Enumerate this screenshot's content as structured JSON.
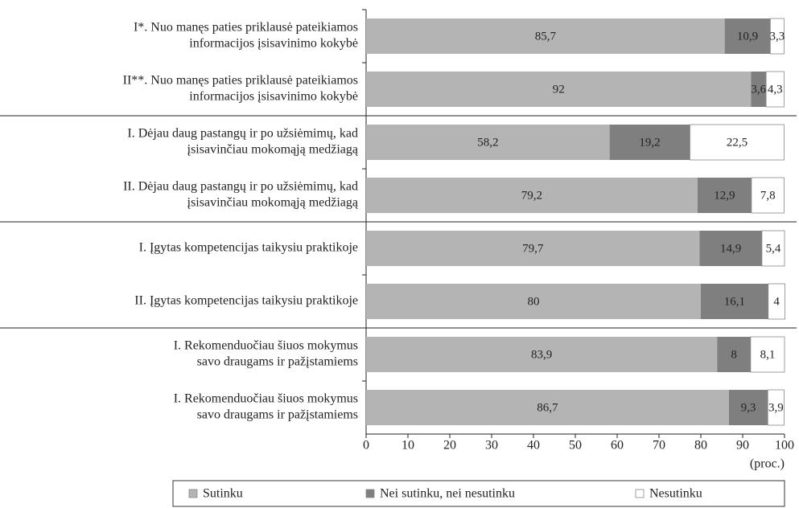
{
  "chart_data": {
    "type": "stacked_barh",
    "categories": [
      [
        "I*. Nuo manęs paties priklausė pateikiamos",
        "informacijos įsisavinimo kokybė"
      ],
      [
        "II**. Nuo manęs paties priklausė pateikiamos",
        "informacijos įsisavinimo kokybė"
      ],
      [
        "I. Dėjau daug pastangų ir po užsiėmimų, kad",
        "įsisavinčiau mokomąją medžiagą"
      ],
      [
        "II. Dėjau daug pastangų ir po užsiėmimų, kad",
        "įsisavinčiau mokomąją medžiagą"
      ],
      [
        "I. Įgytas kompetencijas taikysiu praktikoje"
      ],
      [
        "II. Įgytas kompetencijas taikysiu praktikoje"
      ],
      [
        "I. Rekomenduočiau šiuos mokymus",
        "savo draugams ir pažįstamiems"
      ],
      [
        "I. Rekomenduočiau šiuos mokymus",
        "savo draugams ir pažįstamiems"
      ]
    ],
    "series": [
      {
        "name": "Sutinku",
        "color": "#b4b4b4",
        "values": [
          85.7,
          92,
          58.2,
          79.2,
          79.7,
          80,
          83.9,
          86.7
        ],
        "value_labels": [
          "85,7",
          "92",
          "58,2",
          "79,2",
          "79,7",
          "80",
          "83,9",
          "86,7"
        ]
      },
      {
        "name": "Nei sutinku, nei nesutinku",
        "color": "#7f7f7f",
        "values": [
          10.9,
          3.6,
          19.2,
          12.9,
          14.9,
          16.1,
          8,
          9.3
        ],
        "value_labels": [
          "10,9",
          "3,6",
          "19,2",
          "12,9",
          "14,9",
          "16,1",
          "8",
          "9,3"
        ]
      },
      {
        "name": "Nesutinku",
        "color": "#ffffff",
        "values": [
          3.3,
          4.3,
          22.5,
          7.8,
          5.4,
          4,
          8.1,
          3.9
        ],
        "value_labels": [
          "3,3",
          "4,3",
          "22,5",
          "7,8",
          "5,4",
          "4",
          "8,1",
          "3,9"
        ]
      }
    ],
    "xlabel": "(proc.)",
    "xlim": [
      0,
      100
    ],
    "xticks": [
      0,
      10,
      20,
      30,
      40,
      50,
      60,
      70,
      80,
      90,
      100
    ],
    "legend": "bottom"
  }
}
